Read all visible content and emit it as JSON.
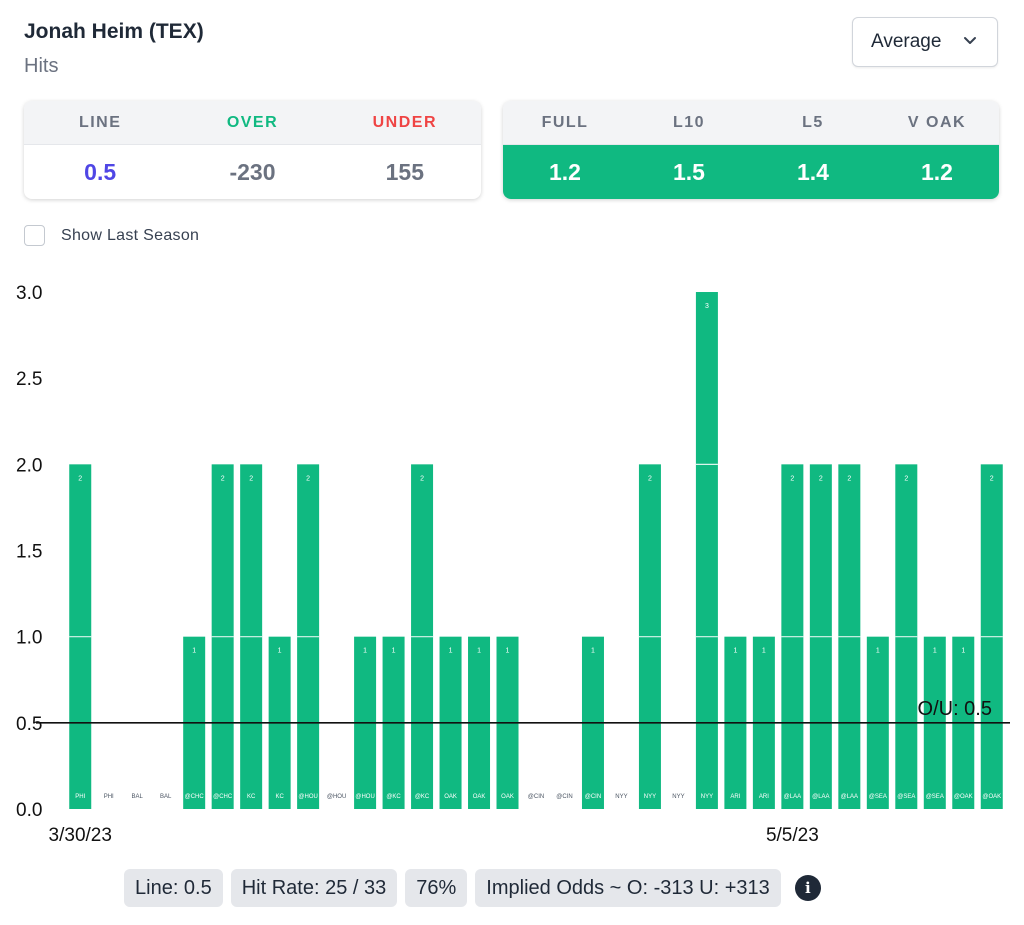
{
  "player": {
    "name": "Jonah Heim (TEX)",
    "stat": "Hits"
  },
  "average_select": {
    "value": "Average"
  },
  "odds_card": {
    "headers": {
      "line": "LINE",
      "over": "OVER",
      "under": "UNDER"
    },
    "values": {
      "line": "0.5",
      "over": "-230",
      "under": "155"
    }
  },
  "avg_card": {
    "headers": {
      "full": "FULL",
      "l10": "L10",
      "l5": "L5",
      "vs": "V OAK"
    },
    "values": {
      "full": "1.2",
      "l10": "1.5",
      "l5": "1.4",
      "vs": "1.2"
    }
  },
  "show_last_season": {
    "label": "Show Last Season",
    "checked": false
  },
  "colors": {
    "bar": "#10b981",
    "over_text": "#10b981",
    "under_text": "#ef4444",
    "line_value": "#4f46e5"
  },
  "chart_data": {
    "type": "bar",
    "ylim": [
      0,
      3
    ],
    "yticks": [
      "0.0",
      "0.5",
      "1.0",
      "1.5",
      "2.0",
      "2.5",
      "3.0"
    ],
    "categories": [
      "PHI",
      "PHI",
      "BAL",
      "BAL",
      "@CHC",
      "@CHC",
      "KC",
      "KC",
      "@HOU",
      "@HOU",
      "@HOU",
      "@KC",
      "@KC",
      "OAK",
      "OAK",
      "OAK",
      "@CIN",
      "@CIN",
      "@CIN",
      "NYY",
      "NYY",
      "NYY",
      "NYY",
      "ARI",
      "ARI",
      "@LAA",
      "@LAA",
      "@LAA",
      "@SEA",
      "@SEA",
      "@SEA",
      "@OAK",
      "@OAK"
    ],
    "values": [
      2,
      0,
      0,
      0,
      1,
      2,
      2,
      1,
      2,
      0,
      1,
      1,
      2,
      1,
      1,
      1,
      0,
      0,
      1,
      0,
      2,
      0,
      3,
      1,
      1,
      2,
      2,
      2,
      1,
      2,
      1,
      1,
      2
    ],
    "date_labels": [
      {
        "index": 0,
        "text": "3/30/23"
      },
      {
        "index": 25,
        "text": "5/5/23"
      }
    ],
    "reference_line": {
      "value": 0.5,
      "label": "O/U: 0.5"
    }
  },
  "footer": {
    "line": "Line: 0.5",
    "hit_rate": "Hit Rate: 25 / 33",
    "percent": "76%",
    "implied_odds": "Implied Odds ~ O: -313 U: +313",
    "info_icon": "i"
  }
}
